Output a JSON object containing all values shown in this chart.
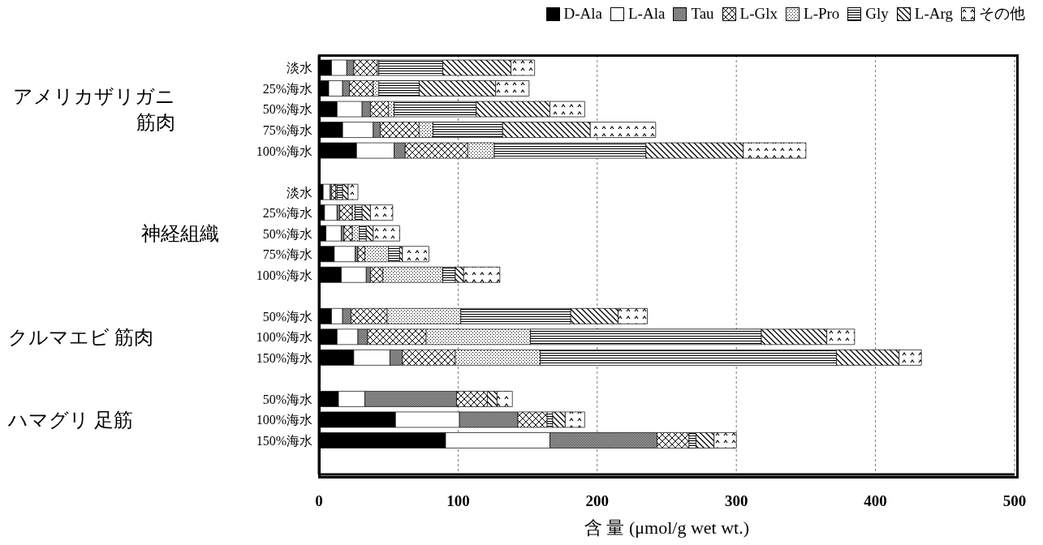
{
  "chart_data": {
    "type": "bar",
    "orientation": "horizontal",
    "stacked": true,
    "categories": [
      "淡水",
      "25%海水",
      "50%海水",
      "75%海水",
      "100%海水",
      null,
      "淡水",
      "25%海水",
      "50%海水",
      "75%海水",
      "100%海水",
      null,
      "50%海水",
      "100%海水",
      "150%海水",
      null,
      "50%海水",
      "100%海水",
      "150%海水"
    ],
    "series": [
      {
        "name": "D-Ala",
        "color": "#000000",
        "values": [
          9,
          7,
          13,
          17,
          27,
          null,
          3,
          4,
          5,
          11,
          16,
          null,
          9,
          13,
          25,
          null,
          14,
          55,
          91
        ]
      },
      {
        "name": "L-Ala",
        "color": "#ffffff",
        "values": [
          11,
          10,
          18,
          22,
          27,
          null,
          5,
          9,
          11,
          15,
          18,
          null,
          8,
          15,
          26,
          null,
          19,
          46,
          75
        ]
      },
      {
        "name": "Tau",
        "color": "#000000",
        "values": [
          5,
          5,
          6,
          5,
          8,
          null,
          1,
          2,
          2,
          2,
          3,
          null,
          6,
          7,
          9,
          null,
          66,
          42,
          77
        ]
      },
      {
        "name": "L-Glx",
        "color": "#000000",
        "values": [
          17,
          17,
          13,
          28,
          45,
          null,
          3,
          9,
          6,
          5,
          9,
          null,
          26,
          42,
          38,
          null,
          22,
          21,
          23
        ]
      },
      {
        "name": "L-Pro",
        "color": "#000000",
        "values": [
          1,
          4,
          4,
          10,
          19,
          null,
          1,
          2,
          5,
          17,
          43,
          null,
          53,
          75,
          61,
          null,
          0,
          0,
          0
        ]
      },
      {
        "name": "Gly",
        "color": "#000000",
        "values": [
          46,
          29,
          59,
          50,
          109,
          null,
          4,
          5,
          5,
          8,
          9,
          null,
          79,
          166,
          213,
          null,
          0,
          4,
          5
        ]
      },
      {
        "name": "L-Arg",
        "color": "#000000",
        "values": [
          49,
          55,
          53,
          63,
          70,
          null,
          4,
          6,
          5,
          2,
          6,
          null,
          34,
          47,
          45,
          null,
          7,
          9,
          13
        ]
      },
      {
        "name": "その他",
        "color": "#000000",
        "values": [
          17,
          24,
          25,
          47,
          45,
          null,
          7,
          16,
          19,
          19,
          26,
          null,
          21,
          20,
          16,
          null,
          11,
          14,
          16
        ]
      }
    ],
    "xlim": [
      0,
      500
    ],
    "xticks": [
      0,
      100,
      200,
      300,
      400,
      500
    ],
    "grid": "x",
    "legend": "top",
    "xlabel": "含 量 (μmol/g wet wt.)",
    "annotations": [
      "アメリカザリガニ筋肉",
      "神経組織",
      "クルマエビ 筋肉",
      "ハマグリ 足筋"
    ]
  }
}
